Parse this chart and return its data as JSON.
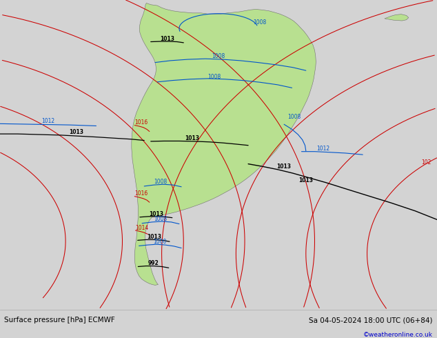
{
  "title_left": "Surface pressure [hPa] ECMWF",
  "title_right": "Sa 04-05-2024 18:00 UTC (06+84)",
  "copyright": "©weatheronline.co.uk",
  "bg_color": "#d3d3d3",
  "land_color": "#b8e090",
  "fig_width": 6.34,
  "fig_height": 4.9,
  "dpi": 100
}
